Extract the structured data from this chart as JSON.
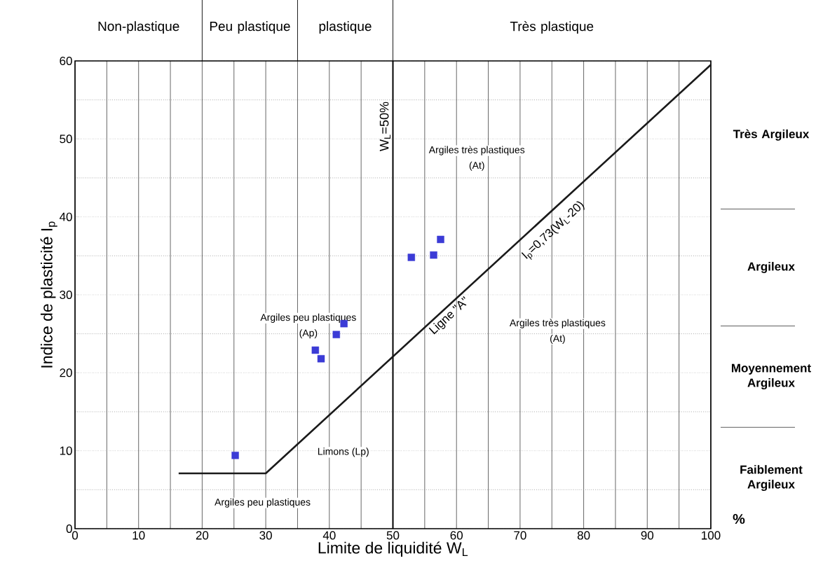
{
  "chart_data": {
    "type": "scatter",
    "xlabel": "Limite de liquidité W$_{L}$",
    "ylabel": "Indice de plasticité I$_{p}$",
    "xlim": [
      0,
      100
    ],
    "ylim": [
      0,
      60
    ],
    "xticks": [
      0,
      10,
      20,
      30,
      40,
      50,
      60,
      70,
      80,
      90,
      100
    ],
    "yticks": [
      0,
      10,
      20,
      30,
      40,
      50,
      60
    ],
    "grid": true,
    "series": [
      {
        "marker": "square",
        "color": "#3b3bd6",
        "x": [
          25.2,
          37.8,
          38.7,
          41.1,
          42.3,
          52.9,
          56.4,
          57.5
        ],
        "values": [
          9.4,
          22.9,
          21.8,
          24.9,
          26.3,
          34.8,
          35.1,
          37.1
        ]
      },
      {
        "type": "line",
        "name": "Ligne \"A\"",
        "color": "#1a1a1a",
        "x": [
          16.3,
          30,
          100
        ],
        "values": [
          7.1,
          7.1,
          59.5
        ]
      }
    ],
    "ref_lines": [
      {
        "axis": "x",
        "value": 50,
        "label": "W$_{L}$=50%"
      }
    ],
    "annotations": [
      "Non-plastique",
      "Peu plastique",
      "plastique",
      "Très plastique",
      "Argiles très plastiques",
      "(At)",
      "Argiles peu plastiques",
      "(Ap)",
      "Argiles très plastiques",
      "(At)",
      "Limons (Lp)",
      "Argiles peu plastiques",
      "I$_{p}$=0,73(W$_{L}$-20)",
      "Très Argileux",
      "Argileux",
      "Moyennement Argileux",
      "Faiblement Argileux",
      "%"
    ]
  }
}
